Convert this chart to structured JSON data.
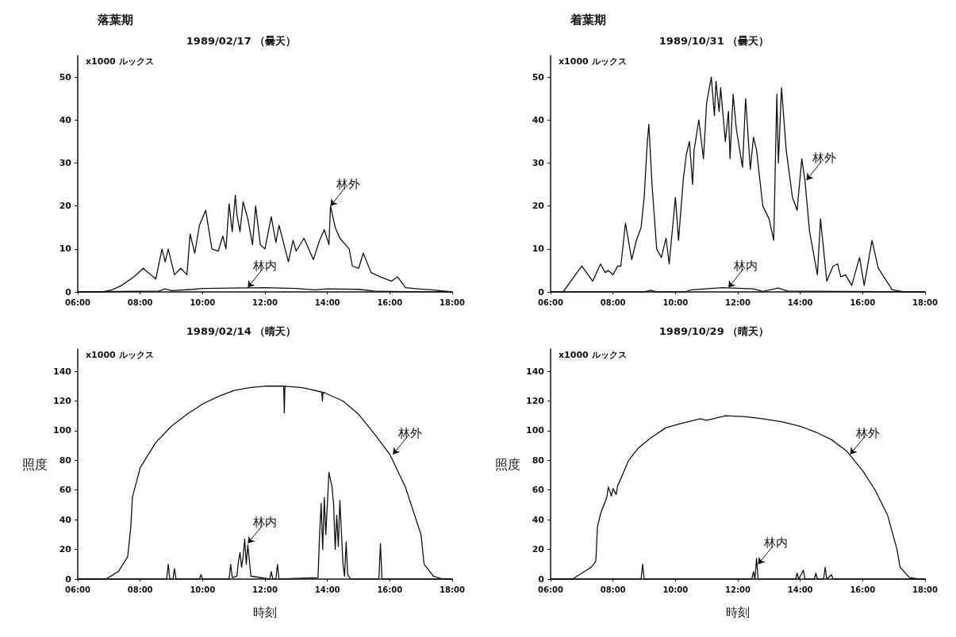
{
  "chart_data": [
    {
      "type": "line",
      "title": "落葉期",
      "subtitle": "1989/02/17 （曇天）",
      "annotations": [
        "x1000 ルックス",
        {
          "text": "林外",
          "x": 14.1,
          "y": 20
        },
        {
          "text": "林内",
          "x": 11.45,
          "y": 1
        }
      ],
      "xlim": [
        6,
        18
      ],
      "xticks": [
        {
          "value": 6,
          "label": "06:00"
        },
        {
          "value": 8,
          "label": "08:00"
        },
        {
          "value": 10,
          "label": "10:00"
        },
        {
          "value": 12,
          "label": "12:00"
        },
        {
          "value": 14,
          "label": "14:00"
        },
        {
          "value": 16,
          "label": "16:00"
        },
        {
          "value": 18,
          "label": "18:00"
        }
      ],
      "ylim": [
        0,
        55
      ],
      "yticks": [
        0,
        10,
        20,
        30,
        40,
        50
      ],
      "grid": false,
      "marker": "none",
      "line_style": "solid",
      "series": [
        {
          "color": "#111111",
          "x": [
            6,
            6.8,
            7.1,
            7.4,
            7.8,
            8.1,
            8.5,
            8.7,
            8.8,
            8.9,
            9.1,
            9.3,
            9.5,
            9.6,
            9.75,
            9.9,
            10.1,
            10.3,
            10.5,
            10.65,
            10.75,
            10.85,
            10.95,
            11.05,
            11.1,
            11.2,
            11.3,
            11.45,
            11.6,
            11.7,
            11.85,
            12,
            12.2,
            12.35,
            12.45,
            12.75,
            12.9,
            13,
            13.25,
            13.55,
            13.75,
            13.9,
            14.05,
            14.1,
            14.25,
            14.4,
            14.7,
            14.8,
            15,
            15.15,
            15.4,
            15.7,
            16.05,
            16.25,
            16.5,
            16.9,
            17.35,
            18
          ],
          "values": [
            0,
            0,
            0.5,
            1.5,
            3.5,
            5.5,
            3,
            10,
            7,
            10,
            4,
            5.5,
            4,
            13.5,
            9,
            15.5,
            19,
            10,
            9.5,
            13,
            10,
            20.5,
            14,
            22.5,
            18,
            14,
            21,
            17,
            11,
            20,
            11,
            10,
            17.5,
            11.5,
            15.5,
            7,
            12,
            9.5,
            12.5,
            7.5,
            12,
            14.5,
            11,
            20,
            15,
            12.5,
            10,
            6,
            5.5,
            9,
            4.5,
            3.5,
            2.5,
            3.5,
            1,
            0.7,
            0.5,
            0
          ]
        },
        {
          "color": "#111111",
          "x": [
            6,
            8.6,
            8.8,
            9,
            9.7,
            10,
            11,
            12,
            13,
            13.6,
            14,
            15,
            15.5,
            16,
            18
          ],
          "values": [
            0,
            0.2,
            0.7,
            0.3,
            0.6,
            0.8,
            0.9,
            1,
            0.8,
            0.5,
            0.7,
            0.6,
            0.2,
            0.1,
            0
          ]
        }
      ]
    },
    {
      "type": "line",
      "title": "着葉期",
      "subtitle": "1989/10/31 （曇天）",
      "annotations": [
        "x1000 ルックス",
        {
          "text": "林外",
          "x": 14.2,
          "y": 26
        },
        {
          "text": "林内",
          "x": 11.7,
          "y": 1
        }
      ],
      "xlim": [
        6,
        18
      ],
      "xticks": [
        {
          "value": 6,
          "label": "06:00"
        },
        {
          "value": 8,
          "label": "08:00"
        },
        {
          "value": 10,
          "label": "10:00"
        },
        {
          "value": 12,
          "label": "12:00"
        },
        {
          "value": 14,
          "label": "14:00"
        },
        {
          "value": 16,
          "label": "16:00"
        },
        {
          "value": 18,
          "label": "18:00"
        }
      ],
      "ylim": [
        0,
        55
      ],
      "yticks": [
        0,
        10,
        20,
        30,
        40,
        50
      ],
      "grid": false,
      "marker": "none",
      "line_style": "solid",
      "series": [
        {
          "color": "#111111",
          "x": [
            6,
            6.4,
            7,
            7.35,
            7.6,
            7.75,
            7.85,
            8,
            8.15,
            8.25,
            8.4,
            8.6,
            8.75,
            8.9,
            9,
            9.1,
            9.15,
            9.25,
            9.4,
            9.55,
            9.7,
            9.8,
            10,
            10.1,
            10.25,
            10.35,
            10.45,
            10.55,
            10.6,
            10.75,
            10.9,
            11,
            11.1,
            11.15,
            11.25,
            11.3,
            11.4,
            11.45,
            11.6,
            11.7,
            11.75,
            11.85,
            11.95,
            12.15,
            12.25,
            12.4,
            12.5,
            12.6,
            12.8,
            13,
            13.15,
            13.25,
            13.3,
            13.4,
            13.55,
            13.75,
            13.9,
            14.05,
            14.15,
            14.3,
            14.55,
            14.65,
            14.85,
            15.05,
            15.2,
            15.3,
            15.45,
            15.65,
            15.9,
            16.05,
            16.3,
            16.5,
            16.95,
            17.35,
            18
          ],
          "values": [
            0,
            0,
            6,
            2.5,
            6.5,
            4.5,
            5,
            4,
            6,
            6,
            16,
            7.5,
            12,
            15,
            22,
            35,
            39,
            25,
            10,
            8,
            12.5,
            6.5,
            22,
            12,
            26,
            32,
            35,
            25,
            33,
            40,
            31,
            44,
            48,
            50,
            41,
            49,
            42,
            47.5,
            35,
            42,
            31,
            46,
            38,
            29,
            45,
            28.5,
            36,
            33,
            20,
            17,
            12,
            46,
            30,
            47.5,
            33,
            22,
            19,
            31,
            26,
            14,
            4,
            17,
            2.5,
            6,
            6.5,
            3.5,
            4,
            1.5,
            8,
            1.5,
            12,
            5.5,
            0.5,
            0,
            0
          ]
        },
        {
          "color": "#111111",
          "x": [
            6,
            9,
            9.2,
            9.4,
            10.3,
            10.5,
            11.5,
            12.5,
            12.8,
            13.3,
            13.6,
            18
          ],
          "values": [
            0,
            0,
            0.4,
            0,
            0,
            0.5,
            1,
            0.7,
            0.1,
            0.9,
            0.2,
            0
          ]
        }
      ]
    },
    {
      "type": "line",
      "title": "1989/02/14 （晴天）",
      "xlabel": "時刻",
      "ylabel": "照度",
      "annotations": [
        "x1000 ルックス",
        {
          "text": "林外",
          "x": 16.1,
          "y": 84
        },
        {
          "text": "林内",
          "x": 11.45,
          "y": 24
        }
      ],
      "xlim": [
        6,
        18
      ],
      "xticks": [
        {
          "value": 6,
          "label": "06:00"
        },
        {
          "value": 8,
          "label": "08:00"
        },
        {
          "value": 10,
          "label": "10:00"
        },
        {
          "value": 12,
          "label": "12:00"
        },
        {
          "value": 14,
          "label": "14:00"
        },
        {
          "value": 16,
          "label": "16:00"
        },
        {
          "value": 18,
          "label": "18:00"
        }
      ],
      "ylim": [
        0,
        155
      ],
      "yticks": [
        0,
        20,
        40,
        60,
        80,
        100,
        120,
        140
      ],
      "grid": false,
      "marker": "none",
      "line_style": "solid",
      "series": [
        {
          "color": "#111111",
          "x": [
            6,
            6.9,
            7.3,
            7.6,
            7.7,
            7.75,
            8,
            8.5,
            9,
            9.5,
            10,
            10.5,
            11,
            11.5,
            12,
            12.6,
            12.62,
            12.64,
            13.2,
            13.82,
            13.84,
            13.86,
            14.5,
            15,
            15.5,
            16,
            16.5,
            17,
            17.1,
            17.4,
            17.7,
            18
          ],
          "values": [
            0,
            0,
            5,
            15,
            35,
            55,
            75,
            92,
            103,
            111,
            118,
            123,
            127,
            129,
            130,
            130,
            112,
            130,
            129,
            126,
            120,
            126,
            120,
            111,
            98,
            84,
            62,
            30,
            10,
            2,
            0,
            0
          ]
        },
        {
          "color": "#111111",
          "x": [
            6,
            7.5,
            8.85,
            8.9,
            8.95,
            9.05,
            9.1,
            9.15,
            9.9,
            9.95,
            10,
            10.85,
            10.9,
            10.95,
            11.1,
            11.15,
            11.2,
            11.25,
            11.3,
            11.35,
            11.4,
            11.45,
            11.55,
            12.15,
            12.2,
            12.25,
            12.35,
            12.4,
            12.45,
            13.7,
            13.75,
            13.8,
            13.85,
            13.9,
            13.95,
            14.05,
            14.15,
            14.2,
            14.25,
            14.3,
            14.35,
            14.4,
            14.5,
            14.55,
            14.6,
            14.65,
            14.75,
            15.65,
            15.7,
            15.75,
            18
          ],
          "values": [
            0,
            0,
            0,
            10,
            0,
            0,
            7,
            0,
            0,
            3,
            0,
            0,
            10,
            1,
            2,
            12,
            18,
            8,
            15,
            27,
            10,
            23,
            2,
            0,
            5,
            0,
            0,
            10,
            0,
            1,
            30,
            51,
            20,
            55,
            30,
            72,
            62,
            50,
            20,
            43,
            22,
            53,
            10,
            2,
            25,
            3,
            0,
            0,
            24,
            0,
            0
          ]
        }
      ]
    },
    {
      "type": "line",
      "title": "1989/10/29 （晴天）",
      "xlabel": "時刻",
      "ylabel": "照度",
      "annotations": [
        "x1000 ルックス",
        {
          "text": "林外",
          "x": 15.6,
          "y": 84
        },
        {
          "text": "林内",
          "x": 12.65,
          "y": 10
        }
      ],
      "xlim": [
        6,
        18
      ],
      "xticks": [
        {
          "value": 6,
          "label": "06:00"
        },
        {
          "value": 8,
          "label": "08:00"
        },
        {
          "value": 10,
          "label": "10:00"
        },
        {
          "value": 12,
          "label": "12:00"
        },
        {
          "value": 14,
          "label": "14:00"
        },
        {
          "value": 16,
          "label": "16:00"
        },
        {
          "value": 18,
          "label": "18:00"
        }
      ],
      "ylim": [
        0,
        155
      ],
      "yticks": [
        0,
        20,
        40,
        60,
        80,
        100,
        120,
        140
      ],
      "grid": false,
      "marker": "none",
      "line_style": "solid",
      "series": [
        {
          "color": "#111111",
          "x": [
            6,
            6.7,
            7.3,
            7.45,
            7.5,
            7.6,
            7.8,
            7.85,
            7.95,
            8,
            8.1,
            8.15,
            8.3,
            8.5,
            8.8,
            9.2,
            9.7,
            10.2,
            10.8,
            11,
            11.6,
            12.2,
            12.8,
            13.4,
            14,
            14.5,
            15,
            15.5,
            16,
            16.4,
            16.8,
            17.1,
            17.2,
            17.5,
            17.8,
            18
          ],
          "values": [
            0,
            0,
            8,
            12,
            35,
            44,
            55,
            62,
            56,
            61,
            57,
            63,
            70,
            80,
            88,
            95,
            102,
            105,
            108,
            107,
            110,
            109.5,
            108,
            106,
            103,
            99,
            94,
            86,
            73,
            60,
            43,
            20,
            8,
            1,
            0,
            0
          ]
        },
        {
          "color": "#111111",
          "x": [
            6,
            8.9,
            8.95,
            9,
            12.45,
            12.5,
            12.55,
            12.6,
            12.65,
            13.85,
            13.9,
            13.95,
            14.1,
            14.15,
            14.45,
            14.5,
            14.55,
            14.75,
            14.8,
            14.85,
            15,
            15.05,
            18
          ],
          "values": [
            0,
            0,
            10,
            0,
            0,
            5,
            0,
            14,
            0,
            0,
            4,
            0,
            6,
            0,
            0,
            4,
            0,
            0,
            8,
            0,
            3,
            0,
            0
          ]
        }
      ]
    }
  ]
}
